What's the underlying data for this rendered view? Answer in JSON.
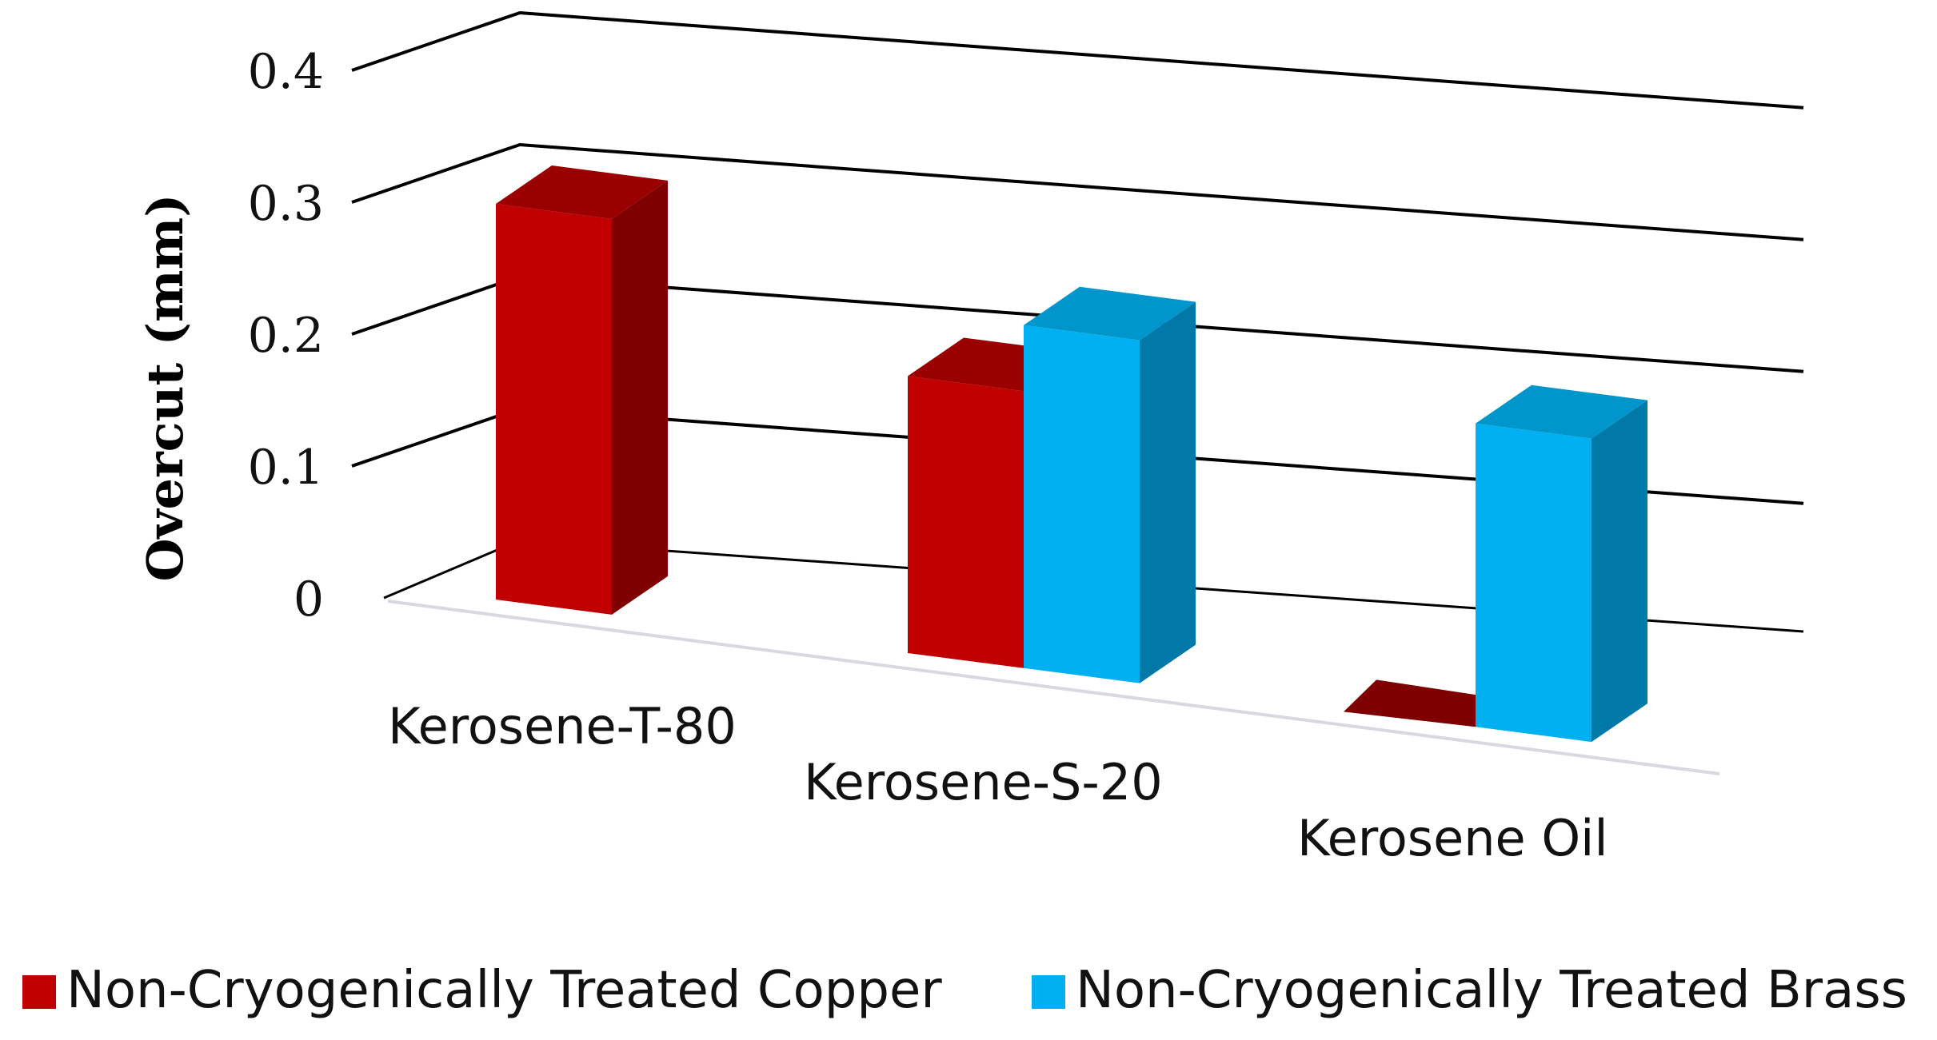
{
  "chart_data": {
    "type": "bar",
    "style": "3d-clustered",
    "title": "",
    "xlabel": "",
    "ylabel": "Overcut (mm)",
    "ylim": [
      0,
      0.4
    ],
    "yticks": [
      "0",
      "0.1",
      "0.2",
      "0.3",
      "0.4"
    ],
    "grid": true,
    "legend_position": "bottom",
    "categories": [
      "Kerosene-T-80",
      "Kerosene-S-20",
      "Kerosene Oil"
    ],
    "series": [
      {
        "name": "Non-Cryogenically Treated Copper",
        "values": [
          0.3,
          0.21,
          0.0
        ],
        "color": "#c00000",
        "side_color": "#7f0000",
        "top_color": "#9a0000"
      },
      {
        "name": "Non-Cryogenically Treated Brass",
        "values": [
          0.0,
          0.26,
          0.23
        ],
        "color": "#00b0f0",
        "side_color": "#0078a8",
        "top_color": "#0096cc"
      }
    ]
  }
}
